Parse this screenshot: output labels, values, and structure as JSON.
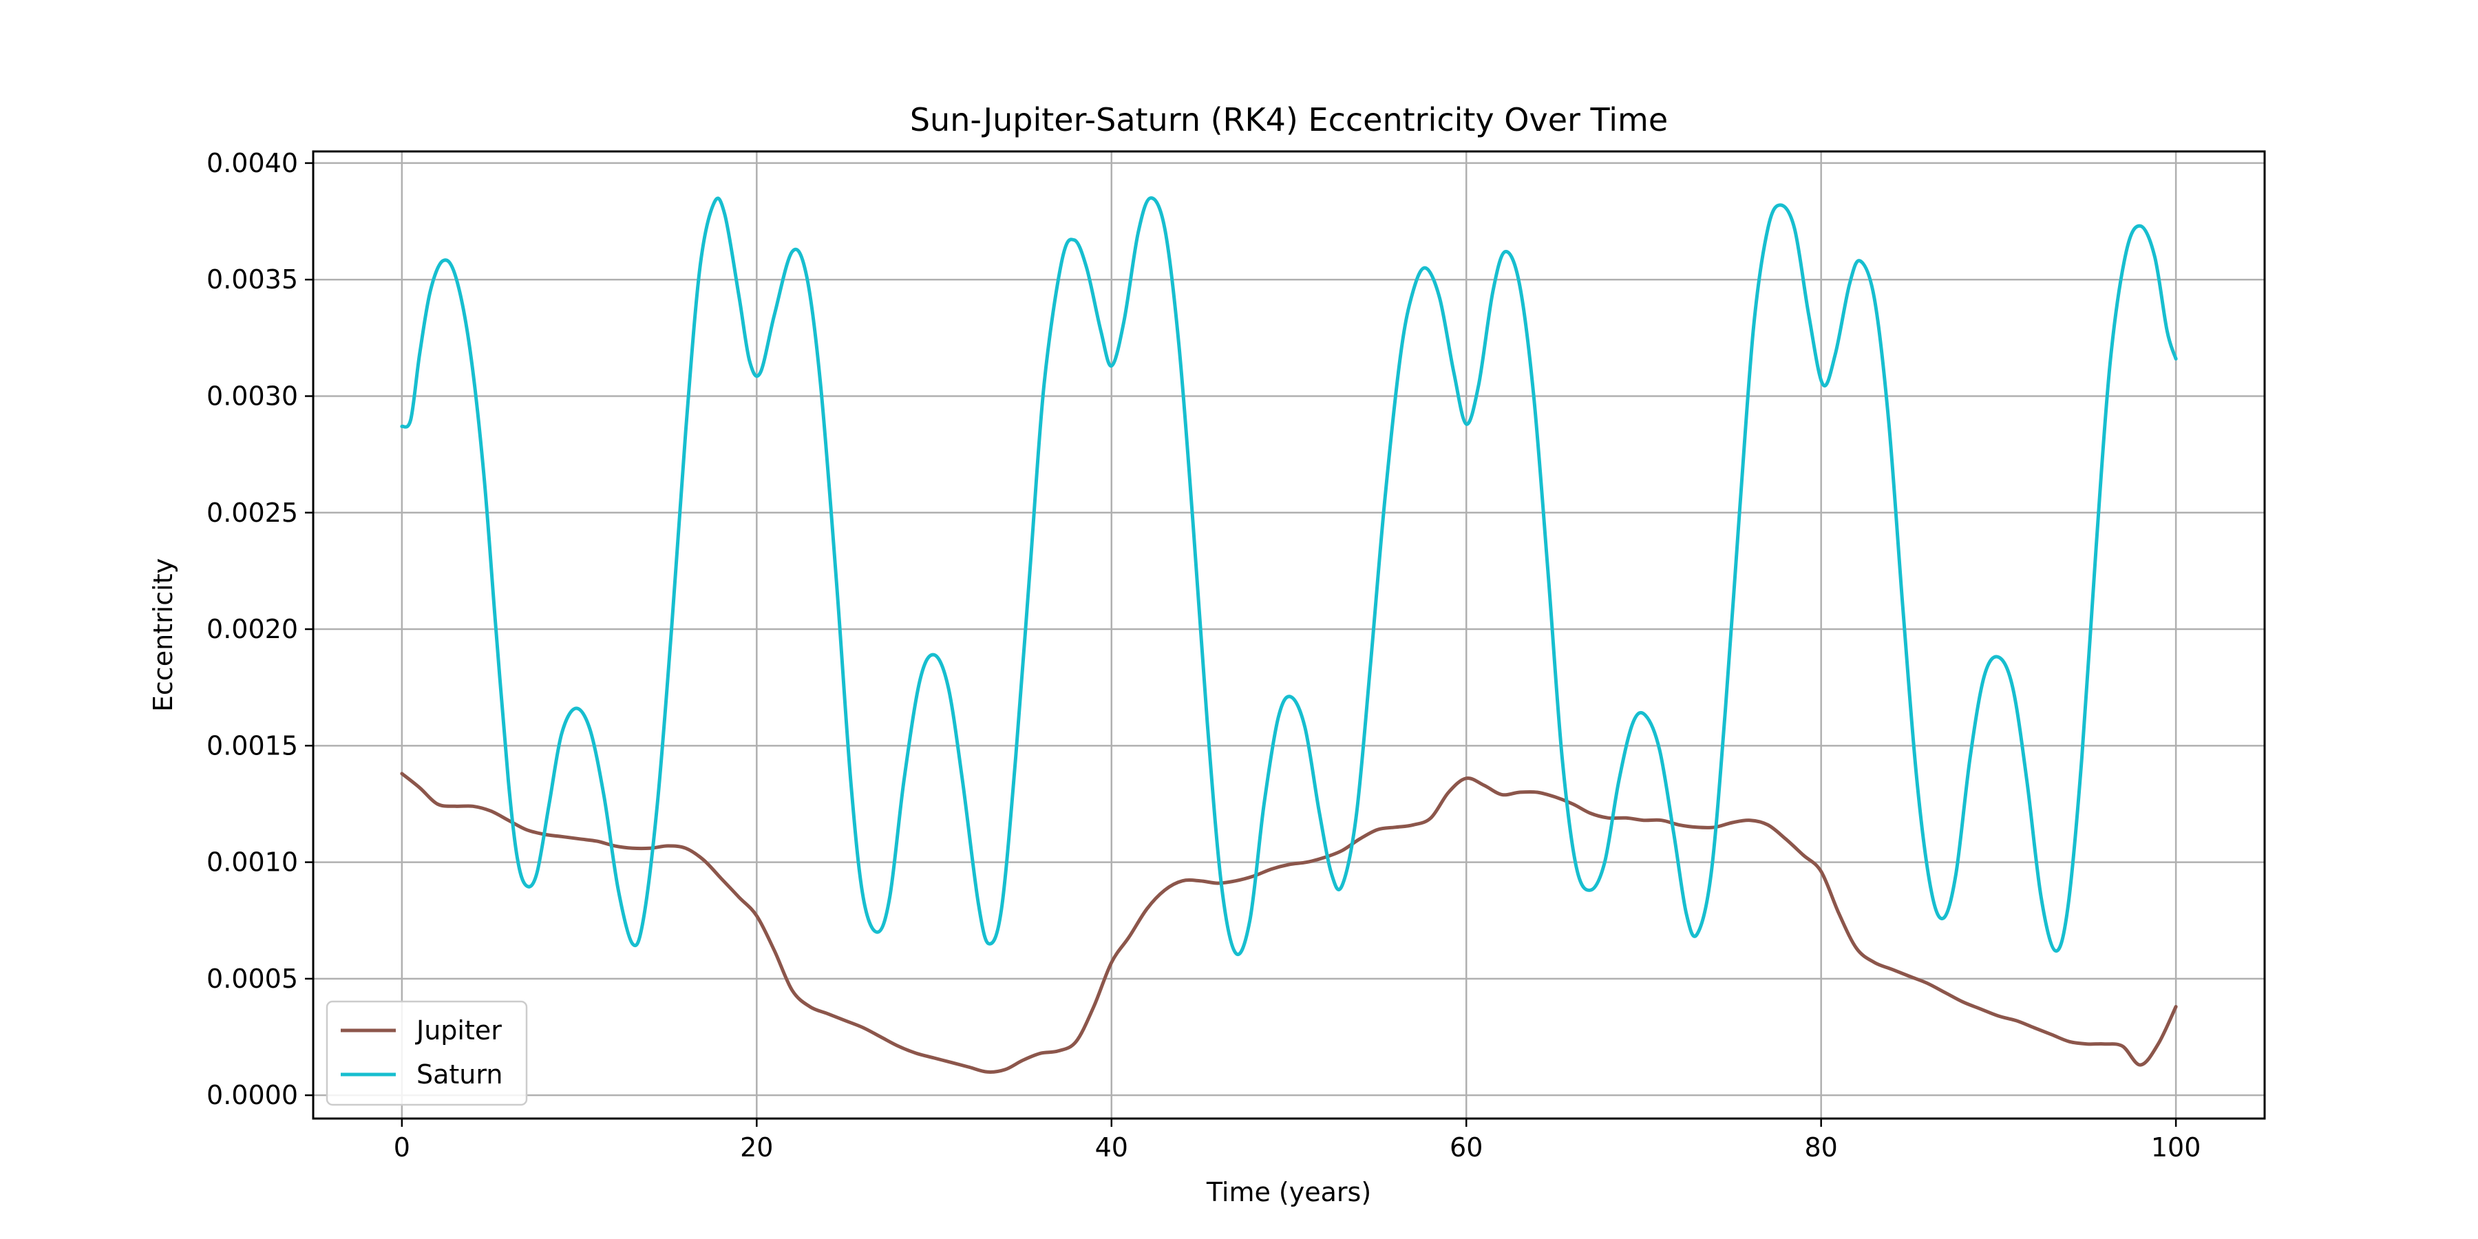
{
  "chart_data": {
    "type": "line",
    "title": "Sun-Jupiter-Saturn (RK4) Eccentricity Over Time",
    "xlabel": "Time (years)",
    "ylabel": "Eccentricity",
    "xlim": [
      -5,
      105
    ],
    "ylim": [
      -0.0001,
      0.00405
    ],
    "xticks": [
      0,
      20,
      40,
      60,
      80,
      100
    ],
    "yticks": [
      0.0,
      0.0005,
      0.001,
      0.0015,
      0.002,
      0.0025,
      0.003,
      0.0035,
      0.004
    ],
    "xtick_labels": [
      "0",
      "20",
      "40",
      "60",
      "80",
      "100"
    ],
    "ytick_labels": [
      "0.0000",
      "0.0005",
      "0.0010",
      "0.0015",
      "0.0020",
      "0.0025",
      "0.0030",
      "0.0035",
      "0.0040"
    ],
    "grid": true,
    "legend_position": "lower-left",
    "series": [
      {
        "name": "Jupiter",
        "color": "#8c564b",
        "points": [
          [
            0,
            0.00138
          ],
          [
            1,
            0.00132
          ],
          [
            2,
            0.00125
          ],
          [
            3,
            0.00124
          ],
          [
            4,
            0.00124
          ],
          [
            5,
            0.00122
          ],
          [
            6,
            0.00118
          ],
          [
            7,
            0.00114
          ],
          [
            8,
            0.00112
          ],
          [
            9,
            0.00111
          ],
          [
            10,
            0.0011
          ],
          [
            11,
            0.00109
          ],
          [
            12,
            0.00107
          ],
          [
            13,
            0.00106
          ],
          [
            14,
            0.00106
          ],
          [
            15,
            0.00107
          ],
          [
            16,
            0.00106
          ],
          [
            17,
            0.00101
          ],
          [
            18,
            0.00093
          ],
          [
            19,
            0.00085
          ],
          [
            20,
            0.00077
          ],
          [
            21,
            0.00062
          ],
          [
            22,
            0.00045
          ],
          [
            23,
            0.00038
          ],
          [
            24,
            0.00035
          ],
          [
            25,
            0.00032
          ],
          [
            26,
            0.00029
          ],
          [
            27,
            0.00025
          ],
          [
            28,
            0.00021
          ],
          [
            29,
            0.00018
          ],
          [
            30,
            0.00016
          ],
          [
            31,
            0.00014
          ],
          [
            32,
            0.00012
          ],
          [
            33,
            0.0001
          ],
          [
            34,
            0.00011
          ],
          [
            35,
            0.00015
          ],
          [
            36,
            0.00018
          ],
          [
            37,
            0.00019
          ],
          [
            38,
            0.00023
          ],
          [
            39,
            0.00038
          ],
          [
            40,
            0.00057
          ],
          [
            41,
            0.00068
          ],
          [
            42,
            0.0008
          ],
          [
            43,
            0.00088
          ],
          [
            44,
            0.00092
          ],
          [
            45,
            0.00092
          ],
          [
            46,
            0.00091
          ],
          [
            47,
            0.00092
          ],
          [
            48,
            0.00094
          ],
          [
            49,
            0.00097
          ],
          [
            50,
            0.00099
          ],
          [
            51,
            0.001
          ],
          [
            52,
            0.00102
          ],
          [
            53,
            0.00105
          ],
          [
            54,
            0.0011
          ],
          [
            55,
            0.00114
          ],
          [
            56,
            0.00115
          ],
          [
            57,
            0.00116
          ],
          [
            58,
            0.00119
          ],
          [
            59,
            0.0013
          ],
          [
            60,
            0.00136
          ],
          [
            61,
            0.00133
          ],
          [
            62,
            0.00129
          ],
          [
            63,
            0.0013
          ],
          [
            64,
            0.0013
          ],
          [
            65,
            0.00128
          ],
          [
            66,
            0.00125
          ],
          [
            67,
            0.00121
          ],
          [
            68,
            0.00119
          ],
          [
            69,
            0.00119
          ],
          [
            70,
            0.00118
          ],
          [
            71,
            0.00118
          ],
          [
            72,
            0.00116
          ],
          [
            73,
            0.00115
          ],
          [
            74,
            0.00115
          ],
          [
            75,
            0.00117
          ],
          [
            76,
            0.00118
          ],
          [
            77,
            0.00116
          ],
          [
            78,
            0.0011
          ],
          [
            79,
            0.00103
          ],
          [
            80,
            0.00096
          ],
          [
            81,
            0.00078
          ],
          [
            82,
            0.00063
          ],
          [
            83,
            0.00057
          ],
          [
            84,
            0.00054
          ],
          [
            85,
            0.00051
          ],
          [
            86,
            0.00048
          ],
          [
            87,
            0.00044
          ],
          [
            88,
            0.0004
          ],
          [
            89,
            0.00037
          ],
          [
            90,
            0.00034
          ],
          [
            91,
            0.00032
          ],
          [
            92,
            0.00029
          ],
          [
            93,
            0.00026
          ],
          [
            94,
            0.00023
          ],
          [
            95,
            0.00022
          ],
          [
            96,
            0.00022
          ],
          [
            97,
            0.00021
          ],
          [
            98,
            0.00013
          ],
          [
            99,
            0.00022
          ],
          [
            100,
            0.00038
          ]
        ]
      },
      {
        "name": "Saturn",
        "color": "#17becf",
        "points": [
          [
            0,
            0.00287
          ],
          [
            0.5,
            0.0029
          ],
          [
            1,
            0.00318
          ],
          [
            1.6,
            0.00345
          ],
          [
            2.3,
            0.00358
          ],
          [
            3,
            0.00352
          ],
          [
            3.8,
            0.00322
          ],
          [
            4.6,
            0.00268
          ],
          [
            5.3,
            0.002
          ],
          [
            6,
            0.00135
          ],
          [
            6.5,
            0.00102
          ],
          [
            7,
            0.0009
          ],
          [
            7.6,
            0.00095
          ],
          [
            8.3,
            0.00125
          ],
          [
            9,
            0.00155
          ],
          [
            9.8,
            0.00166
          ],
          [
            10.6,
            0.00157
          ],
          [
            11.4,
            0.00128
          ],
          [
            12.2,
            0.00088
          ],
          [
            13,
            0.00065
          ],
          [
            13.6,
            0.00075
          ],
          [
            14.4,
            0.00125
          ],
          [
            15.2,
            0.002
          ],
          [
            16,
            0.00285
          ],
          [
            16.8,
            0.00355
          ],
          [
            17.6,
            0.00383
          ],
          [
            18.2,
            0.00378
          ],
          [
            19,
            0.00343
          ],
          [
            19.6,
            0.00315
          ],
          [
            20.2,
            0.0031
          ],
          [
            21,
            0.00335
          ],
          [
            22,
            0.00362
          ],
          [
            22.8,
            0.00352
          ],
          [
            23.6,
            0.00305
          ],
          [
            24.5,
            0.0022
          ],
          [
            25.3,
            0.00135
          ],
          [
            26,
            0.00085
          ],
          [
            26.8,
            0.0007
          ],
          [
            27.5,
            0.00085
          ],
          [
            28.3,
            0.00135
          ],
          [
            29.2,
            0.00178
          ],
          [
            30,
            0.00189
          ],
          [
            30.8,
            0.00175
          ],
          [
            31.6,
            0.00135
          ],
          [
            32.5,
            0.00082
          ],
          [
            33.1,
            0.00065
          ],
          [
            33.8,
            0.0008
          ],
          [
            34.6,
            0.00145
          ],
          [
            35.4,
            0.00225
          ],
          [
            36.2,
            0.00305
          ],
          [
            37.2,
            0.00358
          ],
          [
            37.9,
            0.00367
          ],
          [
            38.6,
            0.00355
          ],
          [
            39.4,
            0.00328
          ],
          [
            40,
            0.00313
          ],
          [
            40.7,
            0.00332
          ],
          [
            41.5,
            0.0037
          ],
          [
            42.2,
            0.00385
          ],
          [
            43,
            0.00372
          ],
          [
            43.8,
            0.00322
          ],
          [
            44.6,
            0.00245
          ],
          [
            45.4,
            0.0016
          ],
          [
            46.2,
            0.0009
          ],
          [
            47,
            0.00061
          ],
          [
            47.8,
            0.00075
          ],
          [
            48.6,
            0.00125
          ],
          [
            49.4,
            0.00162
          ],
          [
            50.1,
            0.00171
          ],
          [
            50.9,
            0.00158
          ],
          [
            51.7,
            0.00122
          ],
          [
            52.4,
            0.00095
          ],
          [
            53,
            0.0009
          ],
          [
            53.8,
            0.0012
          ],
          [
            54.6,
            0.00185
          ],
          [
            55.4,
            0.00255
          ],
          [
            56.3,
            0.00318
          ],
          [
            57,
            0.00345
          ],
          [
            57.7,
            0.00355
          ],
          [
            58.5,
            0.00342
          ],
          [
            59.3,
            0.0031
          ],
          [
            60,
            0.00288
          ],
          [
            60.7,
            0.00305
          ],
          [
            61.5,
            0.00345
          ],
          [
            62.2,
            0.00362
          ],
          [
            63,
            0.00348
          ],
          [
            63.8,
            0.003
          ],
          [
            64.6,
            0.00225
          ],
          [
            65.4,
            0.00145
          ],
          [
            66.2,
            0.00098
          ],
          [
            67,
            0.00088
          ],
          [
            67.8,
            0.001
          ],
          [
            68.6,
            0.00135
          ],
          [
            69.4,
            0.0016
          ],
          [
            70.1,
            0.00163
          ],
          [
            70.9,
            0.00148
          ],
          [
            71.7,
            0.00112
          ],
          [
            72.4,
            0.00078
          ],
          [
            73,
            0.00069
          ],
          [
            73.8,
            0.00095
          ],
          [
            74.6,
            0.00165
          ],
          [
            75.4,
            0.0025
          ],
          [
            76.2,
            0.0033
          ],
          [
            77,
            0.00372
          ],
          [
            77.7,
            0.00382
          ],
          [
            78.5,
            0.00372
          ],
          [
            79.3,
            0.00335
          ],
          [
            80.1,
            0.00305
          ],
          [
            80.8,
            0.00318
          ],
          [
            81.6,
            0.00348
          ],
          [
            82.2,
            0.00358
          ],
          [
            83,
            0.00342
          ],
          [
            83.8,
            0.0029
          ],
          [
            84.6,
            0.0021
          ],
          [
            85.4,
            0.00135
          ],
          [
            86.2,
            0.00088
          ],
          [
            86.9,
            0.00076
          ],
          [
            87.6,
            0.00095
          ],
          [
            88.4,
            0.00145
          ],
          [
            89.2,
            0.0018
          ],
          [
            90,
            0.00188
          ],
          [
            90.8,
            0.00175
          ],
          [
            91.6,
            0.00135
          ],
          [
            92.4,
            0.00085
          ],
          [
            93.2,
            0.00062
          ],
          [
            93.9,
            0.0008
          ],
          [
            94.7,
            0.00145
          ],
          [
            95.5,
            0.00235
          ],
          [
            96.3,
            0.00315
          ],
          [
            97.2,
            0.00362
          ],
          [
            98,
            0.00373
          ],
          [
            98.8,
            0.0036
          ],
          [
            99.5,
            0.00328
          ],
          [
            100,
            0.00316
          ]
        ]
      }
    ]
  }
}
